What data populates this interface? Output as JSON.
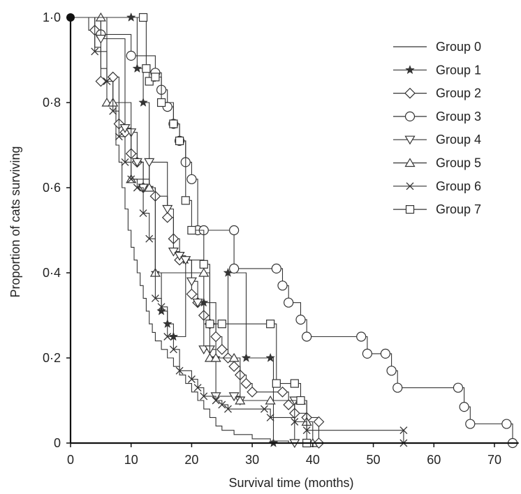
{
  "chart_data": {
    "type": "line",
    "step": true,
    "title": "",
    "xlabel": "Survival time (months)",
    "ylabel": "Proportion of cats surviving",
    "xlim": [
      0,
      74
    ],
    "ylim": [
      0,
      1.0
    ],
    "x_ticks": [
      0,
      10,
      20,
      30,
      40,
      50,
      60,
      70
    ],
    "x_tick_labels": [
      "0",
      "10",
      "20",
      "30",
      "40",
      "50",
      "60",
      "70"
    ],
    "y_ticks": [
      0,
      0.2,
      0.4,
      0.6,
      0.8,
      1.0
    ],
    "y_tick_labels": [
      "0",
      "0·2",
      "0·4",
      "0·6",
      "0·8",
      "1·0"
    ],
    "legend_position": "top-right",
    "grid": false,
    "series": [
      {
        "name": "Group 0",
        "marker": "none",
        "points": [
          [
            0,
            1.0
          ],
          [
            3,
            0.97
          ],
          [
            4,
            0.93
          ],
          [
            5,
            0.88
          ],
          [
            6,
            0.85
          ],
          [
            7,
            0.8
          ],
          [
            7.5,
            0.7
          ],
          [
            8,
            0.66
          ],
          [
            8.5,
            0.6
          ],
          [
            9,
            0.55
          ],
          [
            9.5,
            0.5
          ],
          [
            10,
            0.46
          ],
          [
            10.5,
            0.43
          ],
          [
            11,
            0.4
          ],
          [
            11.5,
            0.37
          ],
          [
            12,
            0.34
          ],
          [
            12.5,
            0.31
          ],
          [
            13,
            0.28
          ],
          [
            13.5,
            0.26
          ],
          [
            14,
            0.24
          ],
          [
            15,
            0.22
          ],
          [
            16,
            0.2
          ],
          [
            17,
            0.18
          ],
          [
            18,
            0.16
          ],
          [
            19,
            0.14
          ],
          [
            20,
            0.12
          ],
          [
            21,
            0.1
          ],
          [
            22,
            0.08
          ],
          [
            23,
            0.06
          ],
          [
            24,
            0.04
          ],
          [
            25,
            0.03
          ],
          [
            27,
            0.02
          ],
          [
            30,
            0.01
          ],
          [
            33,
            0.005
          ],
          [
            36,
            0.0
          ]
        ]
      },
      {
        "name": "Group 1",
        "marker": "star",
        "points": [
          [
            0,
            1.0
          ],
          [
            10,
            1.0
          ],
          [
            11,
            0.88
          ],
          [
            12,
            0.8
          ],
          [
            13,
            0.6
          ],
          [
            14,
            0.4
          ],
          [
            15,
            0.31
          ],
          [
            16,
            0.28
          ],
          [
            17,
            0.25
          ],
          [
            19,
            0.43
          ],
          [
            22,
            0.33
          ],
          [
            24,
            0.2
          ],
          [
            26,
            0.4
          ],
          [
            29,
            0.2
          ],
          [
            33,
            0.2
          ],
          [
            33.5,
            0.0
          ]
        ]
      },
      {
        "name": "Group 2",
        "marker": "diamond",
        "points": [
          [
            0,
            1.0
          ],
          [
            4,
            0.97
          ],
          [
            5,
            0.85
          ],
          [
            7,
            0.86
          ],
          [
            8,
            0.75
          ],
          [
            9,
            0.73
          ],
          [
            10,
            0.68
          ],
          [
            11,
            0.66
          ],
          [
            12,
            0.6
          ],
          [
            14,
            0.58
          ],
          [
            16,
            0.53
          ],
          [
            17,
            0.48
          ],
          [
            18,
            0.43
          ],
          [
            20,
            0.35
          ],
          [
            21,
            0.33
          ],
          [
            22,
            0.3
          ],
          [
            23,
            0.28
          ],
          [
            24,
            0.25
          ],
          [
            25,
            0.22
          ],
          [
            26,
            0.2
          ],
          [
            27,
            0.18
          ],
          [
            28,
            0.16
          ],
          [
            29,
            0.14
          ],
          [
            30,
            0.12
          ],
          [
            35,
            0.12
          ],
          [
            36,
            0.09
          ],
          [
            37,
            0.07
          ],
          [
            39,
            0.06
          ],
          [
            41,
            0.05
          ],
          [
            41,
            0.0
          ]
        ]
      },
      {
        "name": "Group 3",
        "marker": "circle",
        "points": [
          [
            0,
            1.0
          ],
          [
            5,
            0.96
          ],
          [
            10,
            0.91
          ],
          [
            14,
            0.87
          ],
          [
            15,
            0.83
          ],
          [
            16,
            0.79
          ],
          [
            17,
            0.75
          ],
          [
            18,
            0.71
          ],
          [
            19,
            0.66
          ],
          [
            20,
            0.62
          ],
          [
            21,
            0.5
          ],
          [
            22,
            0.5
          ],
          [
            27,
            0.5
          ],
          [
            27,
            0.41
          ],
          [
            34,
            0.41
          ],
          [
            35,
            0.37
          ],
          [
            36,
            0.33
          ],
          [
            38,
            0.29
          ],
          [
            39,
            0.25
          ],
          [
            48,
            0.25
          ],
          [
            49,
            0.21
          ],
          [
            52,
            0.21
          ],
          [
            53,
            0.17
          ],
          [
            54,
            0.13
          ],
          [
            64,
            0.13
          ],
          [
            65,
            0.085
          ],
          [
            66,
            0.045
          ],
          [
            72,
            0.045
          ],
          [
            73,
            0.0
          ]
        ]
      },
      {
        "name": "Group 4",
        "marker": "triangle-down",
        "points": [
          [
            0,
            1.0
          ],
          [
            5,
            0.95
          ],
          [
            9,
            0.74
          ],
          [
            10,
            0.73
          ],
          [
            11,
            0.66
          ],
          [
            12,
            0.6
          ],
          [
            13,
            0.66
          ],
          [
            16,
            0.55
          ],
          [
            17,
            0.45
          ],
          [
            18,
            0.44
          ],
          [
            19,
            0.43
          ],
          [
            20,
            0.38
          ],
          [
            21,
            0.33
          ],
          [
            22,
            0.22
          ],
          [
            23,
            0.22
          ],
          [
            24,
            0.11
          ],
          [
            27,
            0.11
          ],
          [
            28,
            0.1
          ],
          [
            37,
            0.1
          ],
          [
            37,
            0.0
          ]
        ]
      },
      {
        "name": "Group 5",
        "marker": "triangle-up",
        "points": [
          [
            0,
            1.0
          ],
          [
            5,
            1.0
          ],
          [
            6,
            0.8
          ],
          [
            7,
            0.8
          ],
          [
            10,
            0.62
          ],
          [
            13,
            0.6
          ],
          [
            14,
            0.4
          ],
          [
            22,
            0.4
          ],
          [
            23,
            0.2
          ],
          [
            24,
            0.2
          ],
          [
            27,
            0.2
          ],
          [
            28,
            0.1
          ],
          [
            33,
            0.1
          ],
          [
            38,
            0.1
          ],
          [
            39,
            0.05
          ],
          [
            40,
            0.0
          ]
        ]
      },
      {
        "name": "Group 6",
        "marker": "x",
        "points": [
          [
            0,
            1.0
          ],
          [
            4,
            0.92
          ],
          [
            6,
            0.85
          ],
          [
            7,
            0.78
          ],
          [
            8,
            0.72
          ],
          [
            9,
            0.66
          ],
          [
            10,
            0.62
          ],
          [
            11,
            0.6
          ],
          [
            12,
            0.54
          ],
          [
            13,
            0.48
          ],
          [
            14,
            0.34
          ],
          [
            15,
            0.32
          ],
          [
            16,
            0.25
          ],
          [
            17,
            0.22
          ],
          [
            18,
            0.17
          ],
          [
            20,
            0.15
          ],
          [
            21,
            0.13
          ],
          [
            22,
            0.11
          ],
          [
            24,
            0.1
          ],
          [
            25,
            0.09
          ],
          [
            26,
            0.08
          ],
          [
            32,
            0.08
          ],
          [
            33,
            0.06
          ],
          [
            37,
            0.05
          ],
          [
            39,
            0.03
          ],
          [
            55,
            0.03
          ],
          [
            55,
            0.0
          ]
        ]
      },
      {
        "name": "Group 7",
        "marker": "square",
        "points": [
          [
            0,
            1.0
          ],
          [
            12,
            1.0
          ],
          [
            12.5,
            0.88
          ],
          [
            13,
            0.85
          ],
          [
            14,
            0.86
          ],
          [
            15,
            0.8
          ],
          [
            17,
            0.75
          ],
          [
            18,
            0.71
          ],
          [
            19,
            0.57
          ],
          [
            20,
            0.5
          ],
          [
            22,
            0.42
          ],
          [
            23,
            0.28
          ],
          [
            25,
            0.28
          ],
          [
            33,
            0.28
          ],
          [
            34,
            0.14
          ],
          [
            37,
            0.14
          ],
          [
            38,
            0.1
          ],
          [
            39,
            0.0
          ]
        ]
      }
    ]
  }
}
